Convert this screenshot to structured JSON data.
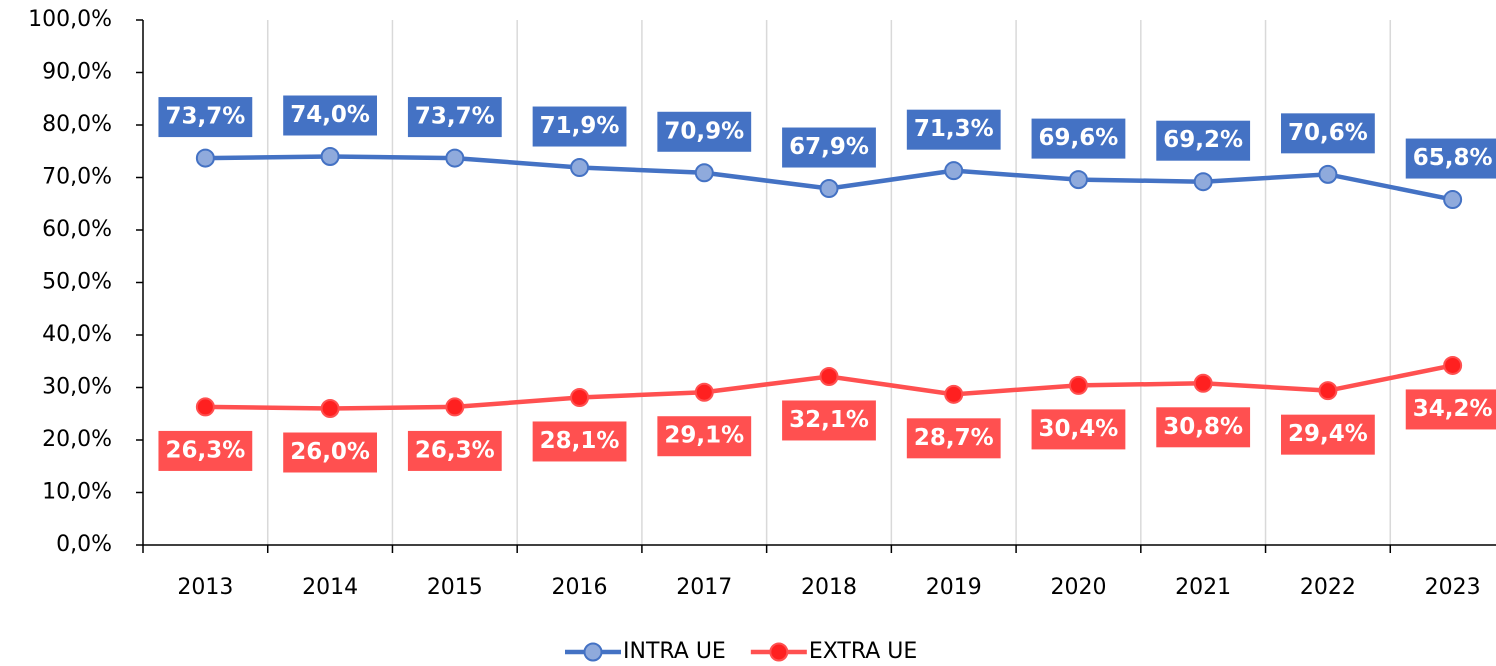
{
  "chart_data": {
    "type": "line",
    "categories": [
      "2013",
      "2014",
      "2015",
      "2016",
      "2017",
      "2018",
      "2019",
      "2020",
      "2021",
      "2022",
      "2023"
    ],
    "series": [
      {
        "name": "INTRA UE",
        "color": "#4472c4",
        "marker_color": "#8faadc",
        "values": [
          73.7,
          74.0,
          73.7,
          71.9,
          70.9,
          67.9,
          71.3,
          69.6,
          69.2,
          70.6,
          65.8
        ],
        "value_labels": [
          "73,7%",
          "74,0%",
          "73,7%",
          "71,9%",
          "70,9%",
          "67,9%",
          "71,3%",
          "69,6%",
          "69,2%",
          "70,6%",
          "65,8%"
        ]
      },
      {
        "name": "EXTRA UE",
        "color": "#ff5050",
        "marker_color": "#ff2020",
        "values": [
          26.3,
          26.0,
          26.3,
          28.1,
          29.1,
          32.1,
          28.7,
          30.4,
          30.8,
          29.4,
          34.2
        ],
        "value_labels": [
          "26,3%",
          "26,0%",
          "26,3%",
          "28,1%",
          "29,1%",
          "32,1%",
          "28,7%",
          "30,4%",
          "30,8%",
          "29,4%",
          "34,2%"
        ]
      }
    ],
    "ylim": [
      0,
      100
    ],
    "yticks": [
      {
        "value": 0,
        "label": "0,0%"
      },
      {
        "value": 10,
        "label": "10,0%"
      },
      {
        "value": 20,
        "label": "20,0%"
      },
      {
        "value": 30,
        "label": "30,0%"
      },
      {
        "value": 40,
        "label": "40,0%"
      },
      {
        "value": 50,
        "label": "50,0%"
      },
      {
        "value": 60,
        "label": "60,0%"
      },
      {
        "value": 70,
        "label": "70,0%"
      },
      {
        "value": 80,
        "label": "80,0%"
      },
      {
        "value": 90,
        "label": "90,0%"
      },
      {
        "value": 100,
        "label": "100,0%"
      }
    ],
    "grid": true,
    "legend": "bottom"
  }
}
